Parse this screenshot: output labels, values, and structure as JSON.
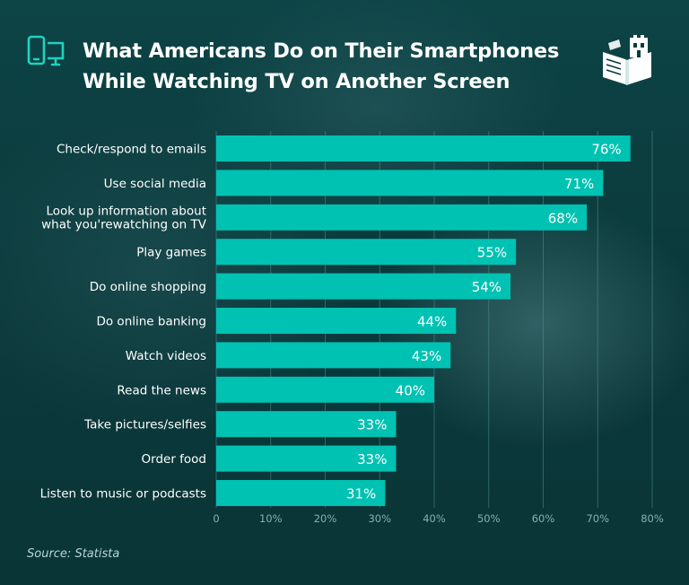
{
  "header": {
    "title_line1": "What Americans Do on Their Smartphones",
    "title_line2": "While Watching TV on Another Screen",
    "device_icon": "phone-monitor-icon",
    "logo_icon": "book-building-logo-icon"
  },
  "source": "Source: Statista",
  "colors": {
    "bar": "#00c2b2",
    "grid": "#4f8f8f",
    "tick_text": "#7fb2b2",
    "label_text": "#ffffff",
    "accent": "#1fd2c0"
  },
  "chart_data": {
    "type": "bar",
    "orientation": "horizontal",
    "categories": [
      [
        "Check/respond to emails"
      ],
      [
        "Use social media"
      ],
      [
        "Look up information about",
        "what you'rewatching on TV"
      ],
      [
        "Play games"
      ],
      [
        "Do online shopping"
      ],
      [
        "Do online banking"
      ],
      [
        "Watch videos"
      ],
      [
        "Read the news"
      ],
      [
        "Take pictures/selfies"
      ],
      [
        "Order food"
      ],
      [
        "Listen to music or podcasts"
      ]
    ],
    "values": [
      76,
      71,
      68,
      55,
      54,
      44,
      43,
      40,
      33,
      33,
      31
    ],
    "data_labels": [
      "76%",
      "71%",
      "68%",
      "55%",
      "54%",
      "44%",
      "43%",
      "40%",
      "33%",
      "33%",
      "31%"
    ],
    "xlim": [
      0,
      80
    ],
    "xticks": [
      0,
      10,
      20,
      30,
      40,
      50,
      60,
      70,
      80
    ],
    "xtick_labels": [
      "0",
      "10%",
      "20%",
      "30%",
      "40%",
      "50%",
      "60%",
      "70%",
      "80%"
    ],
    "grid": true
  }
}
